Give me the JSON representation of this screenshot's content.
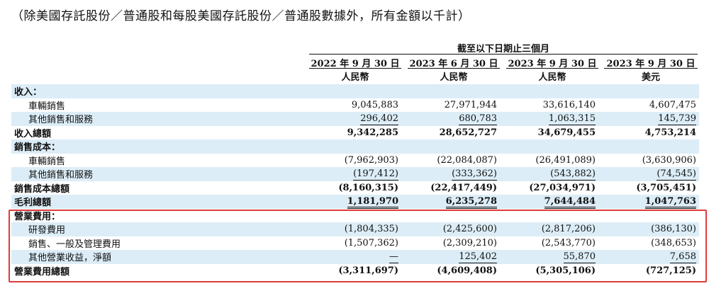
{
  "note": "（除美國存託股份／普通股和每股美國存託股份／普通股數據外，所有金額以千計）",
  "period_header": "截至以下日期止三個月",
  "columns": [
    {
      "date": "2022 年 9 月 30 日",
      "currency": "人民幣"
    },
    {
      "date": "2023 年 6 月 30 日",
      "currency": "人民幣"
    },
    {
      "date": "2023 年 9 月 30 日",
      "currency": "人民幣"
    },
    {
      "date": "2023 年 9 月 30 日",
      "currency": "美元"
    }
  ],
  "rows": [
    {
      "label": "收入：",
      "bold": true,
      "indent": false,
      "shaded": true,
      "values": [
        "",
        "",
        "",
        ""
      ]
    },
    {
      "label": "車輛銷售",
      "bold": false,
      "indent": true,
      "shaded": false,
      "values": [
        "9,045,883",
        "27,971,944",
        "33,616,140",
        "4,607,475"
      ]
    },
    {
      "label": "其他銷售和服務",
      "bold": false,
      "indent": true,
      "shaded": true,
      "values": [
        "296,402",
        "680,783",
        "1,063,315",
        "145,739"
      ]
    },
    {
      "label": "收入總額",
      "bold": true,
      "indent": false,
      "shaded": false,
      "values": [
        "9,342,285",
        "28,652,727",
        "34,679,455",
        "4,753,214"
      ]
    },
    {
      "label": "銷售成本：",
      "bold": true,
      "indent": false,
      "shaded": true,
      "values": [
        "",
        "",
        "",
        ""
      ]
    },
    {
      "label": "車輛銷售",
      "bold": false,
      "indent": true,
      "shaded": false,
      "values": [
        "(7,962,903)",
        "(22,084,087)",
        "(26,491,089)",
        "(3,630,906)"
      ]
    },
    {
      "label": "其他銷售和服務",
      "bold": false,
      "indent": true,
      "shaded": true,
      "values": [
        "(197,412)",
        "(333,362)",
        "(543,882)",
        "(74,545)"
      ]
    },
    {
      "label": "銷售成本總額",
      "bold": true,
      "indent": false,
      "shaded": false,
      "values": [
        "(8,160,315)",
        "(22,417,449)",
        "(27,034,971)",
        "(3,705,451)"
      ]
    },
    {
      "label": "毛利總額",
      "bold": true,
      "indent": false,
      "shaded": true,
      "values": [
        "1,181,970",
        "6,235,278",
        "7,644,484",
        "1,047,763"
      ]
    },
    {
      "label": "營業費用：",
      "bold": true,
      "indent": false,
      "shaded": false,
      "values": [
        "",
        "",
        "",
        ""
      ]
    },
    {
      "label": "研發費用",
      "bold": false,
      "indent": true,
      "shaded": true,
      "values": [
        "(1,804,335)",
        "(2,425,600)",
        "(2,817,206)",
        "(386,130)"
      ]
    },
    {
      "label": "銷售、一般及管理費用",
      "bold": false,
      "indent": true,
      "shaded": false,
      "values": [
        "(1,507,362)",
        "(2,309,210)",
        "(2,543,770)",
        "(348,653)"
      ]
    },
    {
      "label": "其他營業收益，淨額",
      "bold": false,
      "indent": true,
      "shaded": true,
      "values": [
        "—",
        "125,402",
        "55,870",
        "7,658"
      ]
    },
    {
      "label": "營業費用總額",
      "bold": true,
      "indent": false,
      "shaded": false,
      "values": [
        "(3,311,697)",
        "(4,609,408)",
        "(5,305,106)",
        "(727,125)"
      ]
    }
  ],
  "highlight_color": "#e23a3a",
  "shade_color": "#dcedf7"
}
